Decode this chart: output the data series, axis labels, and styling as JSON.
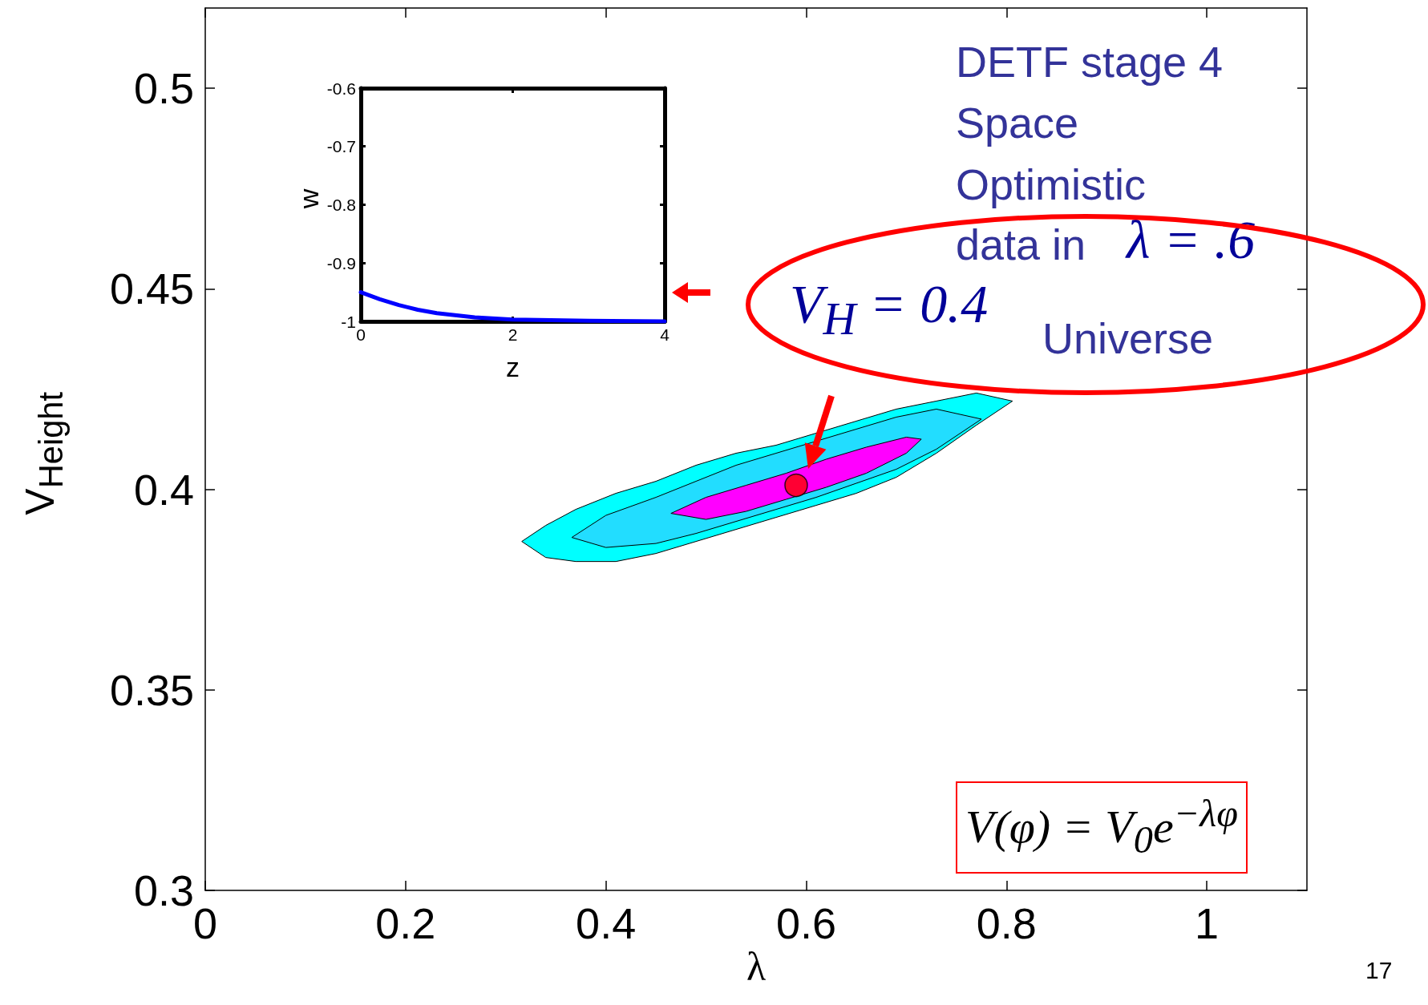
{
  "chart_data": [
    {
      "type": "scatter",
      "xlabel": "λ",
      "ylabel": "V$_{Height}$",
      "xlim": [
        0,
        1.1
      ],
      "ylim": [
        0.3,
        0.52
      ],
      "xticks": [
        0,
        0.2,
        0.4,
        0.6,
        0.8,
        1
      ],
      "yticks": [
        0.3,
        0.35,
        0.4,
        0.45,
        0.5
      ],
      "annotations": [
        "DETF stage 4",
        "Space",
        "Optimistic",
        "data in",
        "λ = .6",
        "V$_{H}$ = 0.4",
        "Universe",
        "V(φ) = V$_{0}$e$^{−λφ}$",
        "17"
      ],
      "series": [
        {
          "type": "area",
          "color": "#00ffff",
          "x": [
            0.316,
            0.34,
            0.37,
            0.41,
            0.45,
            0.49,
            0.53,
            0.57,
            0.61,
            0.65,
            0.69,
            0.73,
            0.77,
            0.806,
            0.77,
            0.73,
            0.69,
            0.65,
            0.61,
            0.57,
            0.53,
            0.49,
            0.45,
            0.41,
            0.37,
            0.34
          ],
          "values": [
            0.387,
            0.391,
            0.395,
            0.399,
            0.402,
            0.406,
            0.409,
            0.411,
            0.414,
            0.417,
            0.42,
            0.422,
            0.424,
            0.422,
            0.416,
            0.409,
            0.403,
            0.399,
            0.396,
            0.393,
            0.39,
            0.387,
            0.384,
            0.382,
            0.382,
            0.383
          ]
        },
        {
          "type": "area",
          "color": "#22ddff",
          "x": [
            0.366,
            0.4,
            0.45,
            0.49,
            0.53,
            0.57,
            0.61,
            0.65,
            0.69,
            0.73,
            0.775,
            0.73,
            0.69,
            0.65,
            0.61,
            0.57,
            0.53,
            0.49,
            0.45,
            0.4
          ],
          "values": [
            0.388,
            0.3935,
            0.398,
            0.402,
            0.406,
            0.409,
            0.412,
            0.415,
            0.418,
            0.42,
            0.4175,
            0.41,
            0.405,
            0.4015,
            0.398,
            0.395,
            0.392,
            0.389,
            0.3865,
            0.3855
          ]
        },
        {
          "type": "area",
          "color": "#ff00ff",
          "x": [
            0.465,
            0.5,
            0.54,
            0.58,
            0.62,
            0.66,
            0.7,
            0.715,
            0.7,
            0.66,
            0.62,
            0.58,
            0.54,
            0.5
          ],
          "values": [
            0.394,
            0.398,
            0.401,
            0.404,
            0.4075,
            0.4105,
            0.413,
            0.4125,
            0.409,
            0.404,
            0.4005,
            0.3975,
            0.3945,
            0.3925
          ]
        },
        {
          "type": "scatter",
          "color": "#ff0000",
          "marker": "circle",
          "x": [
            0.59
          ],
          "values": [
            0.401
          ]
        }
      ]
    },
    {
      "type": "line",
      "xlabel": "z",
      "ylabel": "w",
      "xlim": [
        0,
        4
      ],
      "ylim": [
        -1,
        -0.6
      ],
      "xticks": [
        0,
        2,
        4
      ],
      "yticks": [
        -1,
        -0.9,
        -0.8,
        -0.7,
        -0.6
      ],
      "series": [
        {
          "color": "#0000ff",
          "x": [
            0,
            0.25,
            0.5,
            0.75,
            1,
            1.5,
            2,
            3,
            4
          ],
          "values": [
            -0.95,
            -0.962,
            -0.972,
            -0.98,
            -0.986,
            -0.993,
            -0.997,
            -0.999,
            -1
          ]
        }
      ]
    }
  ]
}
